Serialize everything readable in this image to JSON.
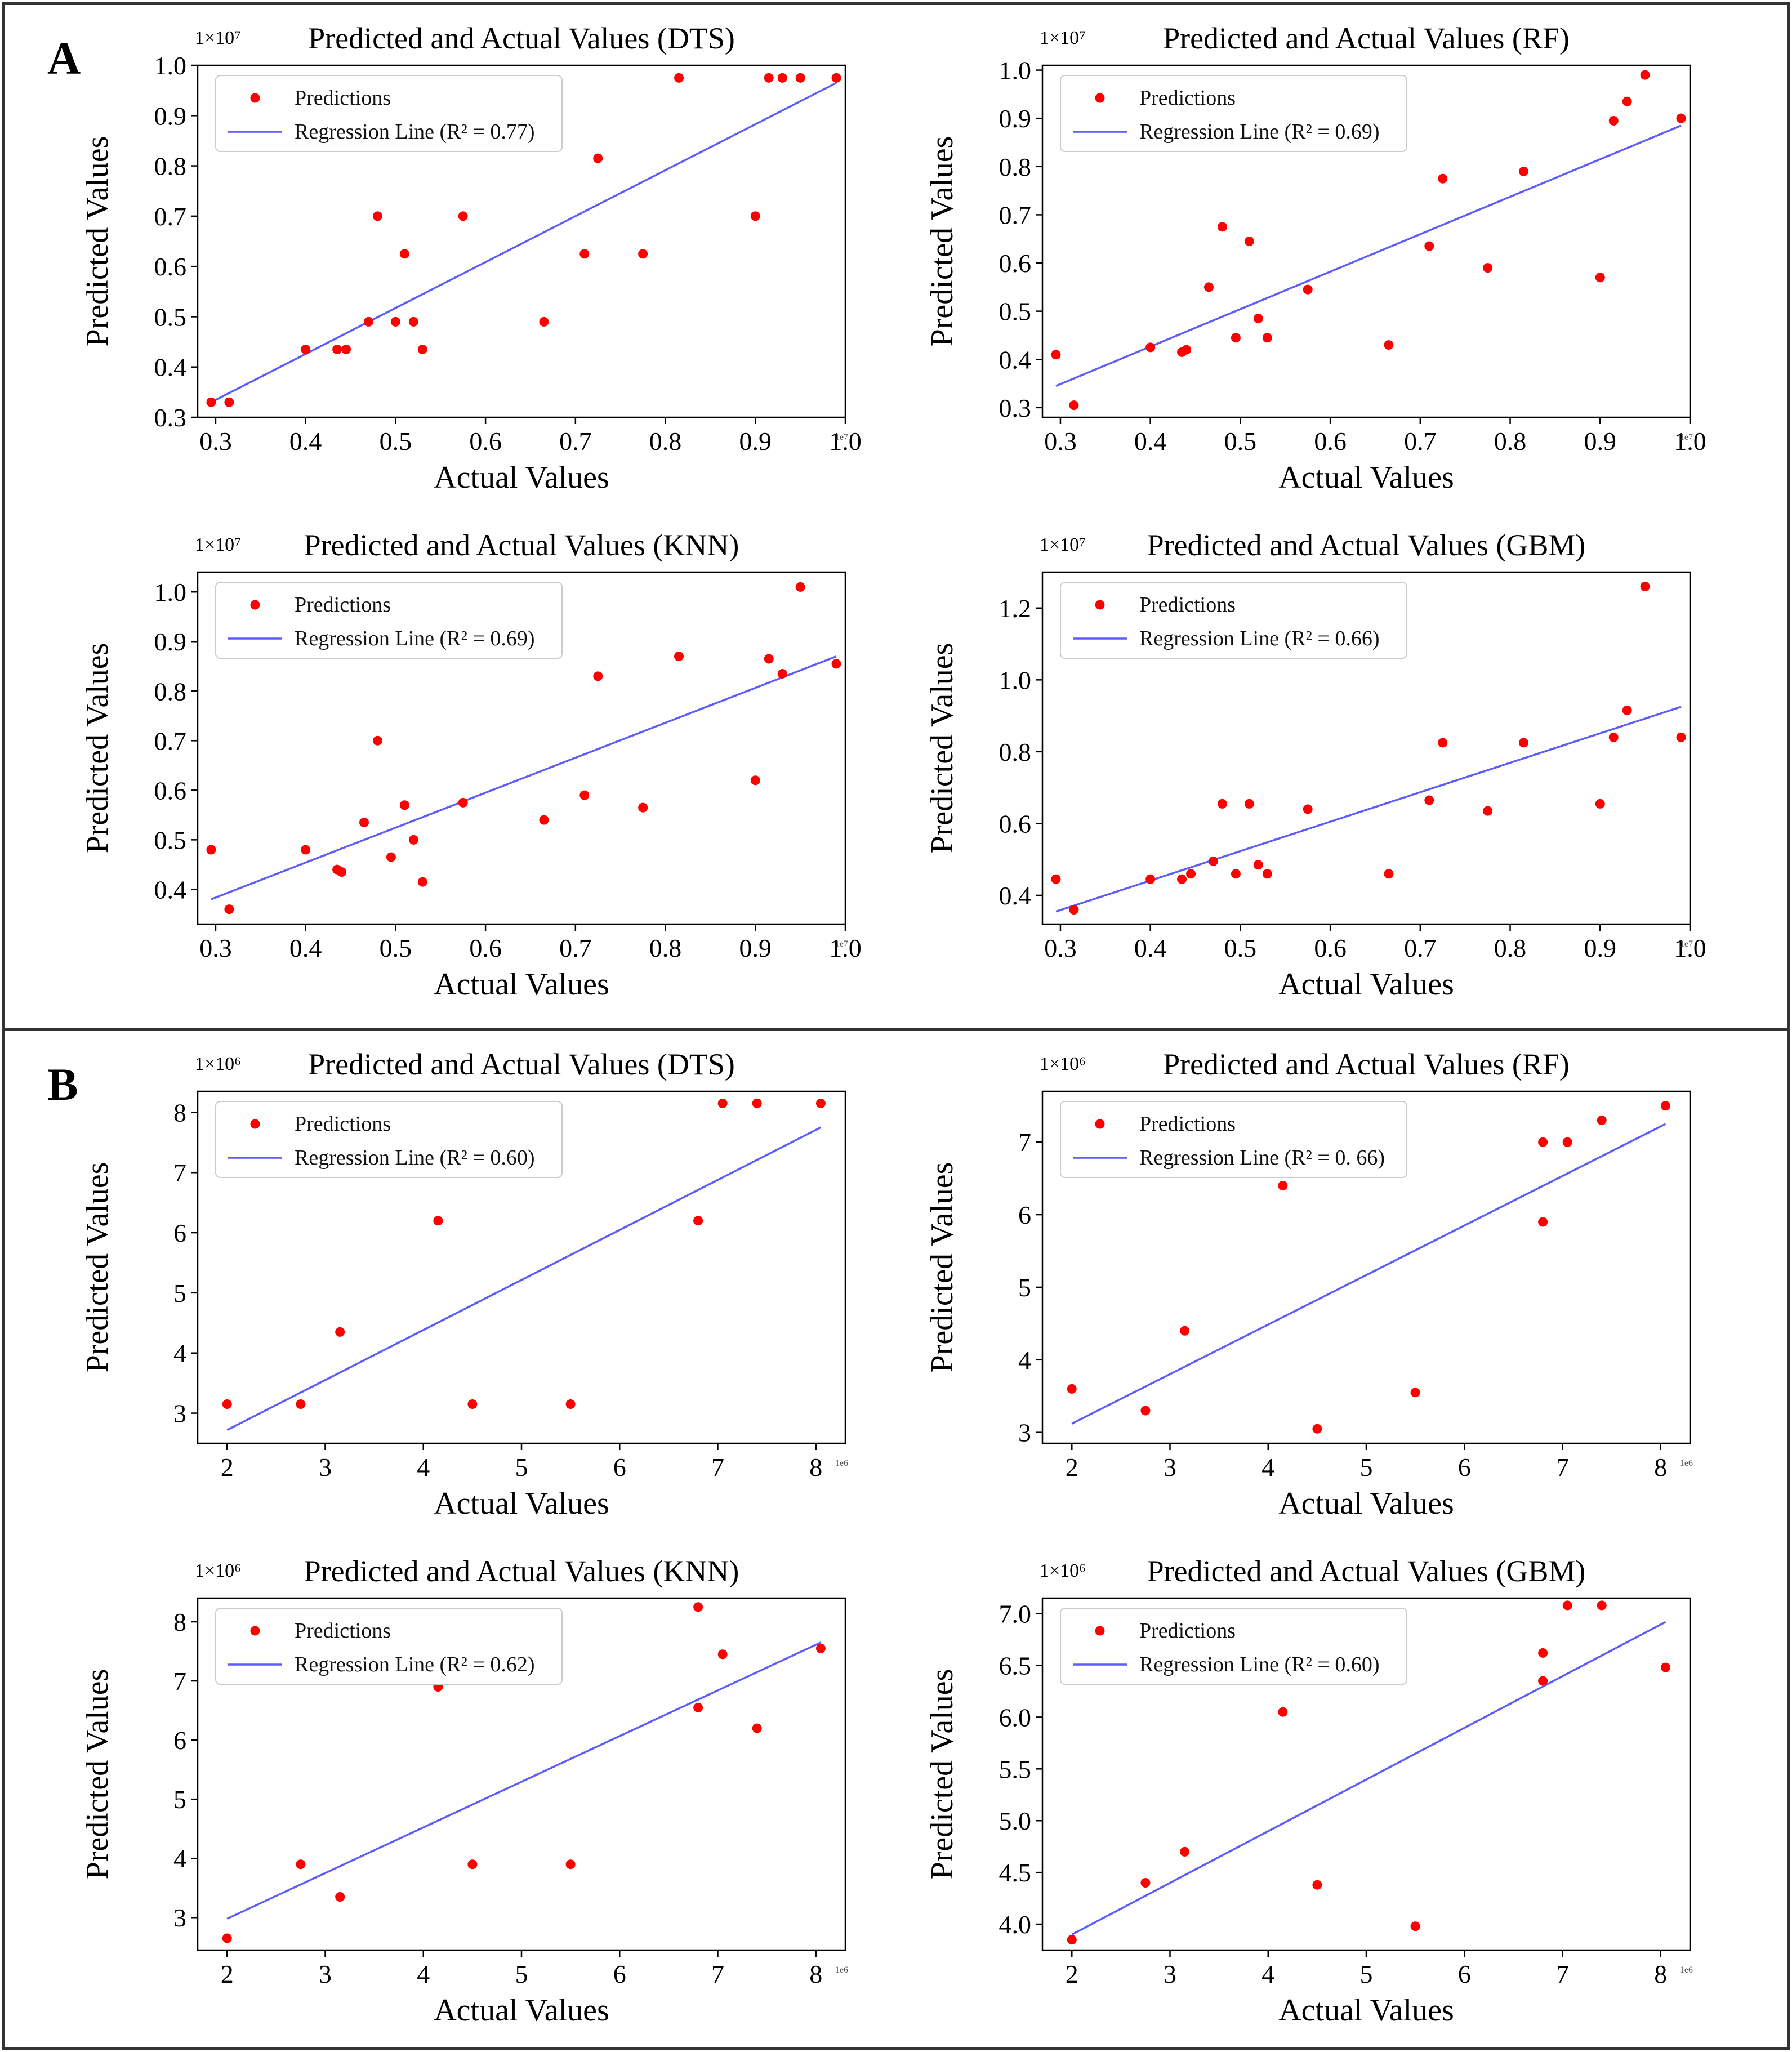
{
  "panels": [
    {
      "label": "A",
      "chart_indices": [
        0,
        1,
        2,
        3
      ]
    },
    {
      "label": "B",
      "chart_indices": [
        4,
        5,
        6,
        7
      ]
    }
  ],
  "colors": {
    "points": "#ff0000",
    "line": "#5c5cff",
    "frame": "#333333"
  },
  "chart_data": [
    {
      "type": "scatter",
      "title": "Predicted and Actual Values (DTS)",
      "xlabel": "Actual Values",
      "ylabel": "Predicted Values",
      "x_exponent_label": "1e7",
      "y_exponent_label": "1×10⁷",
      "xlim": [
        0.28,
        1.0
      ],
      "ylim": [
        0.3,
        1.0
      ],
      "xticks": [
        0.3,
        0.4,
        0.5,
        0.6,
        0.7,
        0.8,
        0.9,
        1.0
      ],
      "xtick_labels": [
        "0.3",
        "0.4",
        "0.5",
        "0.6",
        "0.7",
        "0.8",
        "0.9",
        "1.0"
      ],
      "yticks": [
        0.3,
        0.4,
        0.5,
        0.6,
        0.7,
        0.8,
        0.9,
        1.0
      ],
      "ytick_labels": [
        "0.3",
        "0.4",
        "0.5",
        "0.6",
        "0.7",
        "0.8",
        "0.9",
        "1.0"
      ],
      "legend": {
        "position": "top-left",
        "points_label": "Predictions",
        "line_label": "Regression Line (R² = 0.77)"
      },
      "points": {
        "x": [
          0.295,
          0.315,
          0.4,
          0.435,
          0.445,
          0.47,
          0.48,
          0.5,
          0.51,
          0.52,
          0.53,
          0.575,
          0.665,
          0.71,
          0.725,
          0.775,
          0.815,
          0.9,
          0.915,
          0.93,
          0.95,
          0.99
        ],
        "y": [
          0.33,
          0.33,
          0.435,
          0.435,
          0.435,
          0.49,
          0.7,
          0.49,
          0.625,
          0.49,
          0.435,
          0.7,
          0.49,
          0.625,
          0.815,
          0.625,
          0.975,
          0.7,
          0.975,
          0.975,
          0.975,
          0.975
        ]
      },
      "regression": {
        "x": [
          0.295,
          0.99
        ],
        "y": [
          0.33,
          0.965
        ]
      }
    },
    {
      "type": "scatter",
      "title": "Predicted and Actual Values (RF)",
      "xlabel": "Actual Values",
      "ylabel": "Predicted Values",
      "x_exponent_label": "1e7",
      "y_exponent_label": "1×10⁷",
      "xlim": [
        0.28,
        1.0
      ],
      "ylim": [
        0.28,
        1.01
      ],
      "xticks": [
        0.3,
        0.4,
        0.5,
        0.6,
        0.7,
        0.8,
        0.9,
        1.0
      ],
      "xtick_labels": [
        "0.3",
        "0.4",
        "0.5",
        "0.6",
        "0.7",
        "0.8",
        "0.9",
        "1.0"
      ],
      "yticks": [
        0.3,
        0.4,
        0.5,
        0.6,
        0.7,
        0.8,
        0.9,
        1.0
      ],
      "ytick_labels": [
        "0.3",
        "0.4",
        "0.5",
        "0.6",
        "0.7",
        "0.8",
        "0.9",
        "1.0"
      ],
      "legend": {
        "position": "top-left",
        "points_label": "Predictions",
        "line_label": "Regression Line (R² = 0.69)"
      },
      "points": {
        "x": [
          0.295,
          0.315,
          0.4,
          0.435,
          0.44,
          0.465,
          0.48,
          0.495,
          0.51,
          0.52,
          0.53,
          0.575,
          0.665,
          0.71,
          0.725,
          0.775,
          0.815,
          0.9,
          0.915,
          0.93,
          0.95,
          0.99
        ],
        "y": [
          0.41,
          0.305,
          0.425,
          0.415,
          0.42,
          0.55,
          0.675,
          0.445,
          0.645,
          0.485,
          0.445,
          0.545,
          0.43,
          0.635,
          0.775,
          0.59,
          0.79,
          0.57,
          0.895,
          0.935,
          0.99,
          0.9
        ]
      },
      "regression": {
        "x": [
          0.295,
          0.99
        ],
        "y": [
          0.345,
          0.885
        ]
      }
    },
    {
      "type": "scatter",
      "title": "Predicted and Actual Values (KNN)",
      "xlabel": "Actual Values",
      "ylabel": "Predicted Values",
      "x_exponent_label": "1e7",
      "y_exponent_label": "1×10⁷",
      "xlim": [
        0.28,
        1.0
      ],
      "ylim": [
        0.33,
        1.04
      ],
      "xticks": [
        0.3,
        0.4,
        0.5,
        0.6,
        0.7,
        0.8,
        0.9,
        1.0
      ],
      "xtick_labels": [
        "0.3",
        "0.4",
        "0.5",
        "0.6",
        "0.7",
        "0.8",
        "0.9",
        "1.0"
      ],
      "yticks": [
        0.4,
        0.5,
        0.6,
        0.7,
        0.8,
        0.9,
        1.0
      ],
      "ytick_labels": [
        "0.4",
        "0.5",
        "0.6",
        "0.7",
        "0.8",
        "0.9",
        "1.0"
      ],
      "legend": {
        "position": "top-left",
        "points_label": "Predictions",
        "line_label": "Regression Line (R² = 0.69)"
      },
      "points": {
        "x": [
          0.295,
          0.315,
          0.4,
          0.435,
          0.44,
          0.465,
          0.48,
          0.495,
          0.51,
          0.52,
          0.53,
          0.575,
          0.665,
          0.71,
          0.725,
          0.775,
          0.815,
          0.9,
          0.915,
          0.93,
          0.95,
          0.99
        ],
        "y": [
          0.48,
          0.36,
          0.48,
          0.44,
          0.435,
          0.535,
          0.7,
          0.465,
          0.57,
          0.5,
          0.415,
          0.575,
          0.54,
          0.59,
          0.83,
          0.565,
          0.87,
          0.62,
          0.865,
          0.835,
          1.01,
          0.855
        ]
      },
      "regression": {
        "x": [
          0.295,
          0.99
        ],
        "y": [
          0.38,
          0.87
        ]
      }
    },
    {
      "type": "scatter",
      "title": "Predicted and Actual Values (GBM)",
      "xlabel": "Actual Values",
      "ylabel": "Predicted Values",
      "x_exponent_label": "1e7",
      "y_exponent_label": "1×10⁷",
      "xlim": [
        0.28,
        1.0
      ],
      "ylim": [
        0.32,
        1.3
      ],
      "xticks": [
        0.3,
        0.4,
        0.5,
        0.6,
        0.7,
        0.8,
        0.9,
        1.0
      ],
      "xtick_labels": [
        "0.3",
        "0.4",
        "0.5",
        "0.6",
        "0.7",
        "0.8",
        "0.9",
        "1.0"
      ],
      "yticks": [
        0.4,
        0.6,
        0.8,
        1.0,
        1.2
      ],
      "ytick_labels": [
        "0.4",
        "0.6",
        "0.8",
        "1.0",
        "1.2"
      ],
      "legend": {
        "position": "top-left",
        "points_label": "Predictions",
        "line_label": "Regression Line (R² = 0.66)"
      },
      "points": {
        "x": [
          0.295,
          0.315,
          0.4,
          0.435,
          0.445,
          0.47,
          0.48,
          0.495,
          0.51,
          0.52,
          0.53,
          0.575,
          0.665,
          0.71,
          0.725,
          0.775,
          0.815,
          0.9,
          0.915,
          0.93,
          0.95,
          0.99
        ],
        "y": [
          0.445,
          0.36,
          0.445,
          0.445,
          0.46,
          0.495,
          0.655,
          0.46,
          0.655,
          0.485,
          0.46,
          0.64,
          0.46,
          0.665,
          0.825,
          0.635,
          0.825,
          0.655,
          0.84,
          0.915,
          1.26,
          0.84
        ]
      },
      "regression": {
        "x": [
          0.295,
          0.99
        ],
        "y": [
          0.355,
          0.925
        ]
      }
    },
    {
      "type": "scatter",
      "title": "Predicted and Actual Values (DTS)",
      "xlabel": "Actual Values",
      "ylabel": "Predicted Values",
      "x_exponent_label": "1e6",
      "y_exponent_label": "1×10⁶",
      "xlim": [
        1.7,
        8.3
      ],
      "ylim": [
        2.5,
        8.35
      ],
      "xticks": [
        2,
        3,
        4,
        5,
        6,
        7,
        8
      ],
      "xtick_labels": [
        "2",
        "3",
        "4",
        "5",
        "6",
        "7",
        "8"
      ],
      "yticks": [
        3,
        4,
        5,
        6,
        7,
        8
      ],
      "ytick_labels": [
        "3",
        "4",
        "5",
        "6",
        "7",
        "8"
      ],
      "legend": {
        "position": "top-left",
        "points_label": "Predictions",
        "line_label": "Regression Line (R² = 0.60)"
      },
      "points": {
        "x": [
          2.0,
          2.75,
          3.15,
          4.15,
          4.5,
          5.5,
          6.8,
          7.05,
          7.4,
          8.05
        ],
        "y": [
          3.15,
          3.15,
          4.35,
          6.2,
          3.15,
          3.15,
          6.2,
          8.15,
          8.15,
          8.15
        ]
      },
      "regression": {
        "x": [
          2.0,
          8.05
        ],
        "y": [
          2.72,
          7.75
        ]
      }
    },
    {
      "type": "scatter",
      "title": "Predicted and Actual Values (RF)",
      "xlabel": "Actual Values",
      "ylabel": "Predicted Values",
      "x_exponent_label": "1e6",
      "y_exponent_label": "1×10⁶",
      "xlim": [
        1.7,
        8.3
      ],
      "ylim": [
        2.85,
        7.7
      ],
      "xticks": [
        2,
        3,
        4,
        5,
        6,
        7,
        8
      ],
      "xtick_labels": [
        "2",
        "3",
        "4",
        "5",
        "6",
        "7",
        "8"
      ],
      "yticks": [
        3,
        4,
        5,
        6,
        7
      ],
      "ytick_labels": [
        "3",
        "4",
        "5",
        "6",
        "7"
      ],
      "legend": {
        "position": "top-left",
        "points_label": "Predictions",
        "line_label": "Regression Line (R² = 0. 66)"
      },
      "points": {
        "x": [
          2.0,
          2.75,
          3.15,
          4.15,
          4.5,
          5.5,
          6.8,
          6.8,
          7.05,
          7.4,
          8.05
        ],
        "y": [
          3.6,
          3.3,
          4.4,
          6.4,
          3.05,
          3.55,
          7.0,
          5.9,
          7.0,
          7.3,
          7.5
        ]
      },
      "regression": {
        "x": [
          2.0,
          8.05
        ],
        "y": [
          3.12,
          7.25
        ]
      }
    },
    {
      "type": "scatter",
      "title": "Predicted and Actual Values (KNN)",
      "xlabel": "Actual Values",
      "ylabel": "Predicted Values",
      "x_exponent_label": "1e6",
      "y_exponent_label": "1×10⁶",
      "xlim": [
        1.7,
        8.3
      ],
      "ylim": [
        2.45,
        8.4
      ],
      "xticks": [
        2,
        3,
        4,
        5,
        6,
        7,
        8
      ],
      "xtick_labels": [
        "2",
        "3",
        "4",
        "5",
        "6",
        "7",
        "8"
      ],
      "yticks": [
        3,
        4,
        5,
        6,
        7,
        8
      ],
      "ytick_labels": [
        "3",
        "4",
        "5",
        "6",
        "7",
        "8"
      ],
      "legend": {
        "position": "top-left",
        "points_label": "Predictions",
        "line_label": "Regression Line (R² = 0.62)"
      },
      "points": {
        "x": [
          2.0,
          2.75,
          3.15,
          4.15,
          4.5,
          5.5,
          6.8,
          6.8,
          7.05,
          7.4,
          8.05
        ],
        "y": [
          2.65,
          3.9,
          3.35,
          6.9,
          3.9,
          3.9,
          8.25,
          6.55,
          7.45,
          6.2,
          7.55
        ]
      },
      "regression": {
        "x": [
          2.0,
          8.05
        ],
        "y": [
          2.98,
          7.65
        ]
      }
    },
    {
      "type": "scatter",
      "title": "Predicted and Actual Values (GBM)",
      "xlabel": "Actual Values",
      "ylabel": "Predicted Values",
      "x_exponent_label": "1e6",
      "y_exponent_label": "1×10⁶",
      "xlim": [
        1.7,
        8.3
      ],
      "ylim": [
        3.75,
        7.15
      ],
      "xticks": [
        2,
        3,
        4,
        5,
        6,
        7,
        8
      ],
      "xtick_labels": [
        "2",
        "3",
        "4",
        "5",
        "6",
        "7",
        "8"
      ],
      "yticks": [
        4.0,
        4.5,
        5.0,
        5.5,
        6.0,
        6.5,
        7.0
      ],
      "ytick_labels": [
        "4.0",
        "4.5",
        "5.0",
        "5.5",
        "6.0",
        "6.5",
        "7.0"
      ],
      "legend": {
        "position": "top-left",
        "points_label": "Predictions",
        "line_label": "Regression Line (R² = 0.60)"
      },
      "points": {
        "x": [
          2.0,
          2.75,
          3.15,
          4.15,
          4.5,
          5.5,
          6.8,
          6.8,
          7.05,
          7.4,
          8.05
        ],
        "y": [
          3.85,
          4.4,
          4.7,
          6.05,
          4.38,
          3.98,
          6.62,
          6.35,
          7.08,
          7.08,
          6.48
        ]
      },
      "regression": {
        "x": [
          2.0,
          8.05
        ],
        "y": [
          3.9,
          6.92
        ]
      }
    }
  ]
}
